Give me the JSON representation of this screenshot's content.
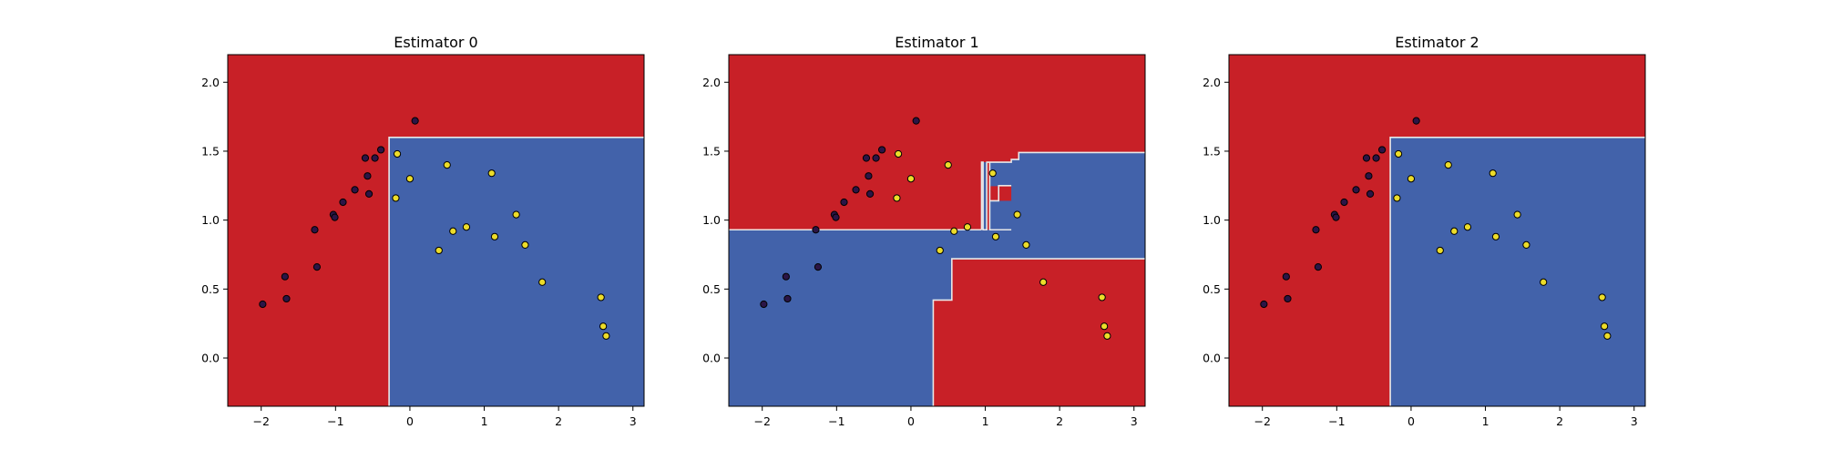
{
  "colors": {
    "class_0_region": "#c82027",
    "class_1_region": "#4262aa",
    "class_0_point": "#2b1546",
    "class_1_point": "#ecdc2a",
    "boundary": "#e8e8e8",
    "point_edge": "#000000"
  },
  "chart_data": [
    {
      "type": "scatter",
      "title": "Estimator 0",
      "xlim": [
        -2.45,
        3.15
      ],
      "ylim": [
        -0.35,
        2.2
      ],
      "xticks": [
        -2,
        -1,
        0,
        1,
        2,
        3
      ],
      "xtick_labels": [
        "−2",
        "−1",
        "0",
        "1",
        "2",
        "3"
      ],
      "yticks": [
        0.0,
        0.5,
        1.0,
        1.5,
        2.0
      ],
      "ytick_labels": [
        "0.0",
        "0.5",
        "1.0",
        "1.5",
        "2.0"
      ],
      "grid": false,
      "regions": [
        {
          "class": 1,
          "rects": [
            [
              -0.28,
              -0.35,
              3.15,
              1.6
            ]
          ]
        }
      ],
      "boundary": [
        [
          -0.28,
          -0.35
        ],
        [
          -0.28,
          1.6
        ],
        [
          3.15,
          1.6
        ]
      ]
    },
    {
      "type": "scatter",
      "title": "Estimator 1",
      "xlim": [
        -2.45,
        3.15
      ],
      "ylim": [
        -0.35,
        2.2
      ],
      "xticks": [
        -2,
        -1,
        0,
        1,
        2,
        3
      ],
      "xtick_labels": [
        "−2",
        "−1",
        "0",
        "1",
        "2",
        "3"
      ],
      "yticks": [
        0.0,
        0.5,
        1.0,
        1.5,
        2.0
      ],
      "ytick_labels": [
        "0.0",
        "0.5",
        "1.0",
        "1.5",
        "2.0"
      ],
      "grid": false,
      "regions": [
        {
          "class": 1,
          "rects": [
            [
              -2.45,
              -0.35,
              0.3,
              0.93
            ],
            [
              0.3,
              0.42,
              0.55,
              0.93
            ],
            [
              0.55,
              0.72,
              0.95,
              0.93
            ],
            [
              1.35,
              0.72,
              3.15,
              1.42
            ],
            [
              1.35,
              1.42,
              1.45,
              1.44
            ],
            [
              1.45,
              1.42,
              3.15,
              1.49
            ],
            [
              0.97,
              0.93,
              1.02,
              1.42
            ],
            [
              1.06,
              1.25,
              1.35,
              1.42
            ],
            [
              1.06,
              0.93,
              1.35,
              1.14
            ],
            [
              0.95,
              0.72,
              1.35,
              0.93
            ]
          ]
        }
      ],
      "boundary_paths": [
        [
          [
            -2.45,
            0.93
          ],
          [
            0.95,
            0.93
          ]
        ],
        [
          [
            0.3,
            -0.35
          ],
          [
            0.3,
            0.42
          ],
          [
            0.55,
            0.42
          ],
          [
            0.55,
            0.72
          ],
          [
            3.15,
            0.72
          ]
        ],
        [
          [
            0.95,
            0.93
          ],
          [
            0.95,
            1.42
          ],
          [
            0.97,
            1.42
          ],
          [
            0.97,
            0.93
          ],
          [
            1.02,
            0.93
          ],
          [
            1.02,
            1.42
          ],
          [
            1.35,
            1.42
          ],
          [
            1.35,
            1.44
          ],
          [
            1.45,
            1.44
          ],
          [
            1.45,
            1.49
          ],
          [
            3.15,
            1.49
          ]
        ],
        [
          [
            1.06,
            1.42
          ],
          [
            1.06,
            0.93
          ],
          [
            1.35,
            0.93
          ]
        ],
        [
          [
            1.06,
            1.14
          ],
          [
            1.18,
            1.14
          ],
          [
            1.18,
            1.25
          ],
          [
            1.35,
            1.25
          ]
        ]
      ]
    },
    {
      "type": "scatter",
      "title": "Estimator 2",
      "xlim": [
        -2.45,
        3.15
      ],
      "ylim": [
        -0.35,
        2.2
      ],
      "xticks": [
        -2,
        -1,
        0,
        1,
        2,
        3
      ],
      "xtick_labels": [
        "−2",
        "−1",
        "0",
        "1",
        "2",
        "3"
      ],
      "yticks": [
        0.0,
        0.5,
        1.0,
        1.5,
        2.0
      ],
      "ytick_labels": [
        "0.0",
        "0.5",
        "1.0",
        "1.5",
        "2.0"
      ],
      "grid": false,
      "regions": [
        {
          "class": 1,
          "rects": [
            [
              -0.28,
              -0.35,
              3.15,
              1.6
            ]
          ]
        }
      ],
      "boundary": [
        [
          -0.28,
          -0.35
        ],
        [
          -0.28,
          1.6
        ],
        [
          3.15,
          1.6
        ]
      ]
    }
  ],
  "points": [
    {
      "x": -1.98,
      "y": 0.39,
      "class": 0
    },
    {
      "x": -1.68,
      "y": 0.59,
      "class": 0
    },
    {
      "x": -1.66,
      "y": 0.43,
      "class": 0
    },
    {
      "x": -1.28,
      "y": 0.93,
      "class": 0
    },
    {
      "x": -1.25,
      "y": 0.66,
      "class": 0
    },
    {
      "x": -1.03,
      "y": 1.04,
      "class": 0
    },
    {
      "x": -1.01,
      "y": 1.02,
      "class": 0
    },
    {
      "x": -0.9,
      "y": 1.13,
      "class": 0
    },
    {
      "x": -0.74,
      "y": 1.22,
      "class": 0
    },
    {
      "x": -0.6,
      "y": 1.45,
      "class": 0
    },
    {
      "x": -0.57,
      "y": 1.32,
      "class": 0
    },
    {
      "x": -0.55,
      "y": 1.19,
      "class": 0
    },
    {
      "x": -0.47,
      "y": 1.45,
      "class": 0
    },
    {
      "x": -0.39,
      "y": 1.51,
      "class": 0
    },
    {
      "x": 0.07,
      "y": 1.72,
      "class": 0
    },
    {
      "x": -0.17,
      "y": 1.48,
      "class": 1
    },
    {
      "x": -0.19,
      "y": 1.16,
      "class": 1
    },
    {
      "x": 0.0,
      "y": 1.3,
      "class": 1
    },
    {
      "x": 0.5,
      "y": 1.4,
      "class": 1
    },
    {
      "x": 1.1,
      "y": 1.34,
      "class": 1
    },
    {
      "x": 0.39,
      "y": 0.78,
      "class": 1
    },
    {
      "x": 0.58,
      "y": 0.92,
      "class": 1
    },
    {
      "x": 0.76,
      "y": 0.95,
      "class": 1
    },
    {
      "x": 1.14,
      "y": 0.88,
      "class": 1
    },
    {
      "x": 1.43,
      "y": 1.04,
      "class": 1
    },
    {
      "x": 1.55,
      "y": 0.82,
      "class": 1
    },
    {
      "x": 1.78,
      "y": 0.55,
      "class": 1
    },
    {
      "x": 2.57,
      "y": 0.44,
      "class": 1
    },
    {
      "x": 2.6,
      "y": 0.23,
      "class": 1
    },
    {
      "x": 2.64,
      "y": 0.16,
      "class": 1
    }
  ]
}
